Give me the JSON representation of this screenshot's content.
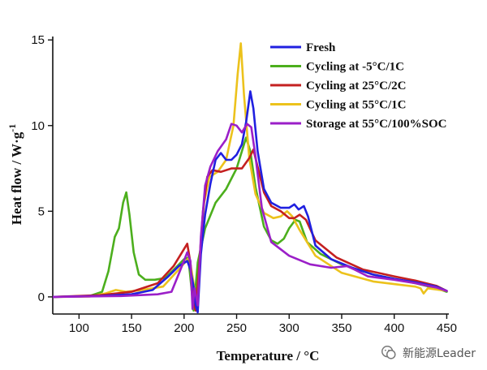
{
  "chart_data": {
    "type": "line",
    "xlabel": "Temperature / °C",
    "ylabel": "Heat flow / W·g",
    "ylabel_sup": "-1",
    "xlim": [
      75,
      452
    ],
    "ylim": [
      -1,
      15.2
    ],
    "xticks": [
      100,
      150,
      200,
      250,
      300,
      350,
      400,
      450
    ],
    "yticks": [
      0,
      5,
      10,
      15
    ],
    "grid": false,
    "legend_position": "top-right",
    "series": [
      {
        "name": "Fresh",
        "color": "#2020e0",
        "points": [
          [
            75,
            0
          ],
          [
            120,
            0.05
          ],
          [
            150,
            0.15
          ],
          [
            170,
            0.4
          ],
          [
            185,
            1.2
          ],
          [
            195,
            1.8
          ],
          [
            203,
            2.1
          ],
          [
            206,
            1.6
          ],
          [
            209,
            0.6
          ],
          [
            211,
            -0.5
          ],
          [
            213,
            -0.9
          ],
          [
            216,
            2.5
          ],
          [
            220,
            4.8
          ],
          [
            225,
            6.6
          ],
          [
            230,
            8.0
          ],
          [
            235,
            8.4
          ],
          [
            240,
            8.0
          ],
          [
            245,
            8.0
          ],
          [
            250,
            8.3
          ],
          [
            255,
            8.9
          ],
          [
            259,
            10.2
          ],
          [
            263,
            12.0
          ],
          [
            266,
            11.0
          ],
          [
            270,
            8.5
          ],
          [
            276,
            6.3
          ],
          [
            283,
            5.5
          ],
          [
            292,
            5.2
          ],
          [
            300,
            5.2
          ],
          [
            305,
            5.4
          ],
          [
            309,
            5.1
          ],
          [
            314,
            5.3
          ],
          [
            318,
            4.7
          ],
          [
            325,
            3.0
          ],
          [
            340,
            2.2
          ],
          [
            360,
            1.7
          ],
          [
            380,
            1.3
          ],
          [
            400,
            1.05
          ],
          [
            420,
            0.85
          ],
          [
            440,
            0.6
          ],
          [
            450,
            0.35
          ]
        ]
      },
      {
        "name": "Cycling at -5°C/1C",
        "color": "#4caf1d",
        "points": [
          [
            75,
            0
          ],
          [
            110,
            0.05
          ],
          [
            122,
            0.3
          ],
          [
            128,
            1.5
          ],
          [
            134,
            3.5
          ],
          [
            138,
            4.0
          ],
          [
            142,
            5.5
          ],
          [
            145,
            6.1
          ],
          [
            148,
            4.8
          ],
          [
            152,
            2.6
          ],
          [
            157,
            1.3
          ],
          [
            163,
            1.0
          ],
          [
            172,
            1.0
          ],
          [
            182,
            1.1
          ],
          [
            192,
            1.7
          ],
          [
            200,
            2.2
          ],
          [
            204,
            2.3
          ],
          [
            207,
            0.5
          ],
          [
            209,
            -0.8
          ],
          [
            213,
            2.0
          ],
          [
            220,
            4.0
          ],
          [
            230,
            5.5
          ],
          [
            240,
            6.3
          ],
          [
            250,
            7.5
          ],
          [
            256,
            8.7
          ],
          [
            259,
            9.3
          ],
          [
            263,
            8.5
          ],
          [
            268,
            6.4
          ],
          [
            276,
            4.1
          ],
          [
            283,
            3.3
          ],
          [
            289,
            3.1
          ],
          [
            295,
            3.4
          ],
          [
            300,
            4.0
          ],
          [
            306,
            4.5
          ],
          [
            310,
            4.4
          ],
          [
            317,
            3.2
          ],
          [
            330,
            2.5
          ],
          [
            350,
            1.9
          ],
          [
            380,
            1.3
          ],
          [
            400,
            1.05
          ],
          [
            420,
            0.8
          ],
          [
            440,
            0.5
          ],
          [
            450,
            0.3
          ]
        ]
      },
      {
        "name": "Cycling at 25°C/2C",
        "color": "#c42020",
        "points": [
          [
            75,
            0
          ],
          [
            120,
            0.1
          ],
          [
            150,
            0.3
          ],
          [
            175,
            0.8
          ],
          [
            190,
            1.8
          ],
          [
            200,
            2.8
          ],
          [
            203,
            3.1
          ],
          [
            206,
            2.0
          ],
          [
            209,
            -0.3
          ],
          [
            211,
            -0.8
          ],
          [
            214,
            1.5
          ],
          [
            218,
            5.0
          ],
          [
            222,
            7.0
          ],
          [
            227,
            7.4
          ],
          [
            235,
            7.3
          ],
          [
            245,
            7.5
          ],
          [
            255,
            7.5
          ],
          [
            262,
            8.1
          ],
          [
            266,
            8.6
          ],
          [
            270,
            7.6
          ],
          [
            276,
            6.1
          ],
          [
            283,
            5.3
          ],
          [
            292,
            5.0
          ],
          [
            300,
            4.6
          ],
          [
            305,
            4.6
          ],
          [
            310,
            4.8
          ],
          [
            316,
            4.5
          ],
          [
            325,
            3.3
          ],
          [
            345,
            2.3
          ],
          [
            370,
            1.6
          ],
          [
            400,
            1.2
          ],
          [
            420,
            0.95
          ],
          [
            440,
            0.65
          ],
          [
            450,
            0.35
          ]
        ]
      },
      {
        "name": "Cycling at 55°C/1C",
        "color": "#ecc21c",
        "points": [
          [
            75,
            0
          ],
          [
            110,
            0.02
          ],
          [
            125,
            0.2
          ],
          [
            135,
            0.4
          ],
          [
            145,
            0.3
          ],
          [
            160,
            0.4
          ],
          [
            180,
            0.6
          ],
          [
            195,
            1.6
          ],
          [
            205,
            2.3
          ],
          [
            209,
            0.8
          ],
          [
            212,
            -0.6
          ],
          [
            215,
            2.0
          ],
          [
            219,
            5.5
          ],
          [
            224,
            7.0
          ],
          [
            232,
            7.3
          ],
          [
            240,
            8.0
          ],
          [
            247,
            10.0
          ],
          [
            251,
            13.0
          ],
          [
            254,
            14.8
          ],
          [
            257,
            11.8
          ],
          [
            262,
            8.1
          ],
          [
            268,
            6.0
          ],
          [
            276,
            4.9
          ],
          [
            285,
            4.6
          ],
          [
            292,
            4.7
          ],
          [
            298,
            5.0
          ],
          [
            303,
            4.7
          ],
          [
            310,
            3.9
          ],
          [
            325,
            2.4
          ],
          [
            350,
            1.4
          ],
          [
            380,
            0.9
          ],
          [
            420,
            0.6
          ],
          [
            425,
            0.5
          ],
          [
            428,
            0.2
          ],
          [
            432,
            0.5
          ],
          [
            450,
            0.35
          ]
        ]
      },
      {
        "name": "Storage at 55°C/100%SOC",
        "color": "#9b1fc8",
        "points": [
          [
            75,
            0
          ],
          [
            140,
            0.05
          ],
          [
            175,
            0.15
          ],
          [
            188,
            0.3
          ],
          [
            196,
            1.5
          ],
          [
            203,
            2.6
          ],
          [
            206,
            2.1
          ],
          [
            208,
            -0.7
          ],
          [
            210,
            0.5
          ],
          [
            213,
            -0.5
          ],
          [
            216,
            3.5
          ],
          [
            220,
            6.5
          ],
          [
            225,
            7.6
          ],
          [
            232,
            8.5
          ],
          [
            240,
            9.2
          ],
          [
            245,
            10.1
          ],
          [
            250,
            10.0
          ],
          [
            255,
            9.6
          ],
          [
            260,
            10.1
          ],
          [
            264,
            9.9
          ],
          [
            268,
            8.2
          ],
          [
            274,
            5.2
          ],
          [
            283,
            3.2
          ],
          [
            300,
            2.4
          ],
          [
            320,
            1.9
          ],
          [
            340,
            1.7
          ],
          [
            355,
            1.8
          ],
          [
            362,
            1.6
          ],
          [
            375,
            1.2
          ],
          [
            400,
            1.0
          ],
          [
            420,
            0.8
          ],
          [
            440,
            0.55
          ],
          [
            450,
            0.35
          ]
        ]
      }
    ]
  },
  "watermark": {
    "text": "新能源Leader"
  }
}
